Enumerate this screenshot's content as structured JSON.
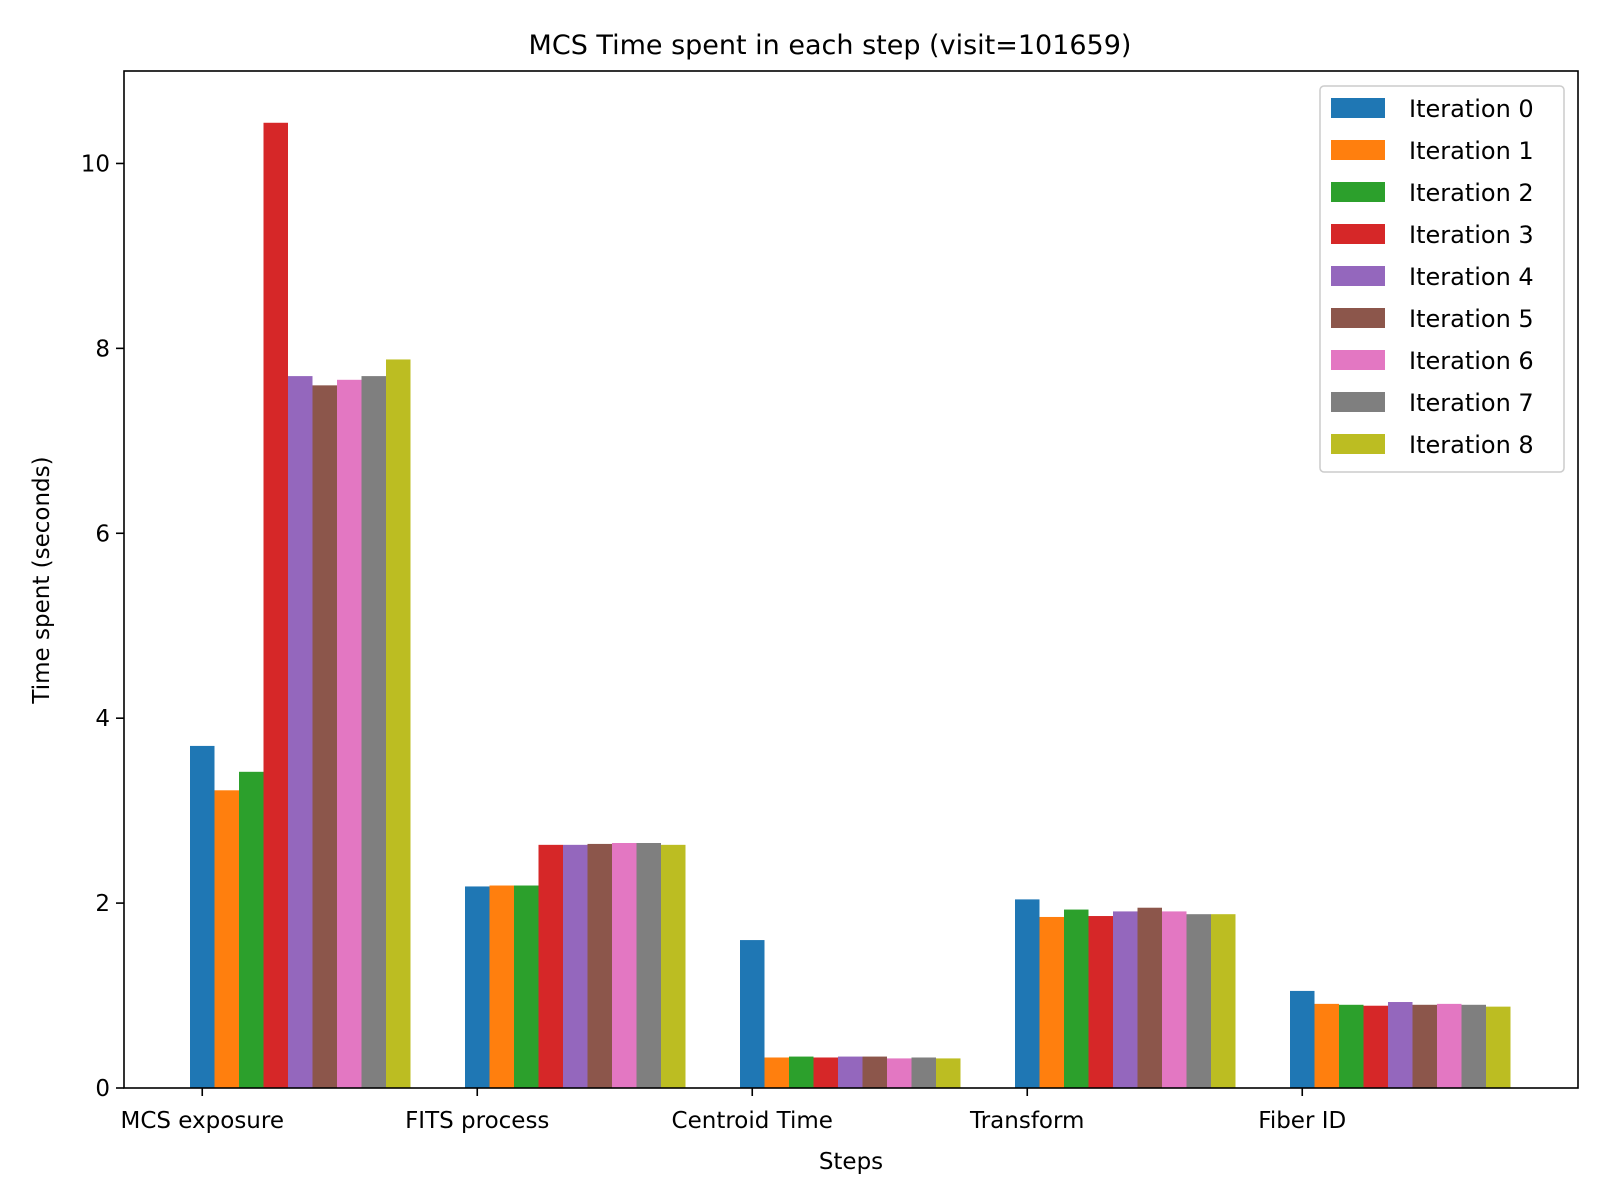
{
  "chart_data": {
    "type": "bar",
    "title": "MCS Time spent in each step (visit=101659)",
    "xlabel": "Steps",
    "ylabel": "Time spent (seconds)",
    "ylim": [
      0,
      11
    ],
    "yticks": [
      0,
      2,
      4,
      6,
      8,
      10
    ],
    "grid": false,
    "legend_position": "top-right",
    "categories": [
      "MCS exposure",
      "FITS process",
      "Centroid Time",
      "Transform",
      "Fiber ID"
    ],
    "series": [
      {
        "name": "Iteration 0",
        "color": "#1f77b4",
        "values": [
          3.7,
          2.18,
          1.6,
          2.04,
          1.05
        ]
      },
      {
        "name": "Iteration 1",
        "color": "#ff7f0e",
        "values": [
          3.22,
          2.19,
          0.33,
          1.85,
          0.91
        ]
      },
      {
        "name": "Iteration 2",
        "color": "#2ca02c",
        "values": [
          3.42,
          2.19,
          0.34,
          1.93,
          0.9
        ]
      },
      {
        "name": "Iteration 3",
        "color": "#d62728",
        "values": [
          10.44,
          2.63,
          0.33,
          1.86,
          0.89
        ]
      },
      {
        "name": "Iteration 4",
        "color": "#9467bd",
        "values": [
          7.7,
          2.63,
          0.34,
          1.91,
          0.93
        ]
      },
      {
        "name": "Iteration 5",
        "color": "#8c564b",
        "values": [
          7.6,
          2.64,
          0.34,
          1.95,
          0.9
        ]
      },
      {
        "name": "Iteration 6",
        "color": "#e377c2",
        "values": [
          7.66,
          2.65,
          0.32,
          1.91,
          0.91
        ]
      },
      {
        "name": "Iteration 7",
        "color": "#7f7f7f",
        "values": [
          7.7,
          2.65,
          0.33,
          1.88,
          0.9
        ]
      },
      {
        "name": "Iteration 8",
        "color": "#bcbd22",
        "values": [
          7.88,
          2.63,
          0.32,
          1.88,
          0.88
        ]
      }
    ]
  }
}
